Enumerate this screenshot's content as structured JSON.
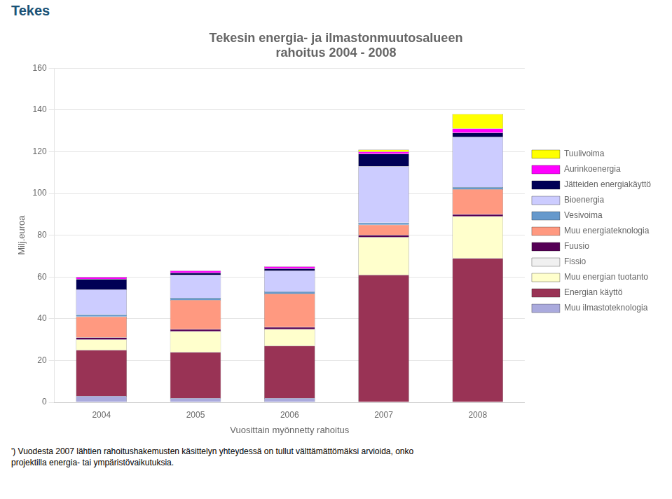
{
  "chart_data": {
    "type": "bar",
    "stacked": true,
    "title": [
      "Tekesin energia- ja ilmastonmuutosalueen",
      "rahoitus 2004 - 2008"
    ],
    "xlabel": "Vuosittain myönnetty rahoitus",
    "ylabel": "Milj.euroa",
    "categories": [
      "2004",
      "2005",
      "2006",
      "2007",
      "2008"
    ],
    "series": [
      {
        "name": "Muu ilmastoteknologia",
        "color": "#AAAADD",
        "values": [
          3,
          2,
          2,
          0,
          0
        ]
      },
      {
        "name": "Energian käyttö",
        "color": "#993355",
        "values": [
          22,
          22,
          25,
          61,
          69
        ]
      },
      {
        "name": "Muu energian tuotanto",
        "color": "#FFFFCC",
        "values": [
          5,
          10,
          8,
          18,
          20
        ]
      },
      {
        "name": "Fissio",
        "color": "#F0F0F0",
        "values": [
          0,
          0,
          0,
          0,
          0
        ]
      },
      {
        "name": "Fuusio",
        "color": "#550055",
        "values": [
          1,
          1,
          1,
          1,
          1
        ]
      },
      {
        "name": "Muu energiateknologia",
        "color": "#FF9980",
        "values": [
          10,
          14,
          16,
          5,
          12
        ]
      },
      {
        "name": "Vesivoima",
        "color": "#6699CC",
        "values": [
          1,
          1,
          1,
          1,
          1
        ]
      },
      {
        "name": "Bioenergia",
        "color": "#CCCCFF",
        "values": [
          12,
          11,
          10,
          27,
          24
        ]
      },
      {
        "name": "Jätteiden energiakäyttö",
        "color": "#000055",
        "values": [
          5,
          1,
          1,
          6,
          2
        ]
      },
      {
        "name": "Aurinkoenergia",
        "color": "#FF00FF",
        "values": [
          1,
          1,
          1,
          1,
          2
        ]
      },
      {
        "name": "Tuulivoima",
        "color": "#FFFF00",
        "values": [
          0,
          0,
          0,
          1,
          7
        ]
      }
    ],
    "ylim": [
      0,
      160
    ],
    "yticks": [
      0,
      20,
      40,
      60,
      80,
      100,
      120,
      140,
      160
    ],
    "grid": true,
    "legend": "right",
    "annotations": [
      "Tekes",
      "') Vuodesta 2007 lähtien rahoitushakemusten käsittelyn yhteydessä on tullut välttämättömäksi arvioida, onko\nprojektilla energia- tai ympäristövaikutuksia."
    ]
  }
}
